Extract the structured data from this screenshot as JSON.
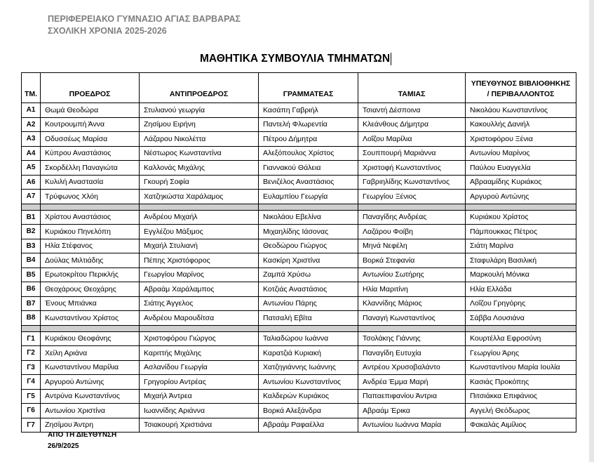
{
  "header": {
    "school_name": "ΠΕΡΙΦΕΡΕΙΑΚΟ ΓΥΜΝΑΣΙΟ ΑΓΙΑΣ ΒΑΡΒΑΡΑΣ",
    "school_year": "ΣΧΟΛΙΚΗ ΧΡΟΝΙΑ 2025-2026",
    "title": "ΜΑΘΗΤΙΚΑ ΣΥΜΒΟΥΛΙΑ ΤΜΗΜΑΤΩΝ"
  },
  "table": {
    "columns": [
      "ΤΜ.",
      "ΠΡΟΕΔΡΟΣ",
      "ΑΝΤΙΠΡΟΕΔΡΟΣ",
      "ΓΡΑΜΜΑΤΕΑΣ",
      "ΤΑΜΙΑΣ",
      "ΥΠΕΥΘΥΝΟΣ ΒΙΒΛΙΟΘΗΚΗΣ / ΠΕΡΙΒΑΛΛΟΝΤΟΣ"
    ],
    "groups": [
      [
        [
          "Α1",
          "Θωμά Θεοδώρα",
          "Στυλιανού γεωργία",
          "Κασάπη Γαβριήλ",
          "Τσιαντή Δέσποινα",
          "Νικολάου Κωνσταντίνος"
        ],
        [
          "Α2",
          "Κουτρουμπή Άννα",
          "Ζησίμου Ειρήνη",
          "Παντελή Φλωρεντία",
          "Κλεάνθους Δήμητρα",
          "Κακουλλής Δανιήλ"
        ],
        [
          "Α3",
          "Οδυσσέως Μαρίσα",
          "Λάζαρου Νικολέττα",
          "Πέτρου Δήμητρα",
          "Λοΐζου Μαρίλια",
          "Χριστοφόρου Ξένια"
        ],
        [
          "Α4",
          "Κύπρου Αναστάσιος",
          "Νέστωρος Κωνσταντίνα",
          "Αλεξόπουλος Χρίστος",
          "Σουππουρή Μαριάννα",
          "Αντωνίου Μαρίνος"
        ],
        [
          "Α5",
          "Σκορδέλλη Παναγιώτα",
          "Καλλονάς Μιχάλης",
          "Γιαννακού Θάλεια",
          "Χριστοφή Κωνσταντίνος",
          "Παύλου Ευαγγελία"
        ],
        [
          "Α6",
          "Κυλιλή Αναστασία",
          "Γκουρή Σοφία",
          "Βενιζέλος Αναστάσιος",
          "Γαβριηλίδης Κωνσταντίνος",
          "Αβρααμίδης Κυριάκος"
        ],
        [
          "Α7",
          "Τρύφωνος Χλόη",
          "Χατζηκώστα Χαράλαμος",
          "Ευλαμπίου Γεωργία",
          "Γεωργίου Ξένιος",
          "Αργυρού Αντώνης"
        ]
      ],
      [
        [
          "Β1",
          "Χρίστου Αναστάσιος",
          "Ανδρέου Μιχαήλ",
          "Νικολάου Εβελίνα",
          "Παναγίδης Ανδρέας",
          "Κυριάκου Χρίστος"
        ],
        [
          "Β2",
          "Κυριάκου Πηνελόπη",
          "Εγγλέζου Μάξιμος",
          "Μιχαηλίδης Ιάσονας",
          "Λαζάρου Φοίβη",
          "Πάμπουκκας Πέτρος"
        ],
        [
          "Β3",
          "Ηλία Στέφανος",
          "Μιχαήλ Στυλιανή",
          "Θεοδώρου Γιώργος",
          "Μηνά Νεφέλη",
          "Σιάτη Μαρίνα"
        ],
        [
          "Β4",
          "Δούλας Μιλτιάδης",
          "Πέπης Χριστόφορος",
          "Κασκίρη Χριστίνα",
          "Βορκά Στεφανία",
          "Σταφυλάρη Βασιλική"
        ],
        [
          "Β5",
          "Ερωτοκρίτου Περικλής",
          "Γεωργίου Μαρίνος",
          "Ζαμπά Χρύσω",
          "Αντωνίου Σωτήρης",
          "Μαρκουλή Μόνικα"
        ],
        [
          "Β6",
          "Θεοχάρους Θεοχάρης",
          "Αβραάμ Χαράλαμπος",
          "Κοτζιάς Αναστάσιος",
          "Ηλία Μαριτίνη",
          "Ηλία Ελλάδα"
        ],
        [
          "Β7",
          "Ένους Μπιάνκα",
          "Σιάτης Άγγελος",
          "Αντωνίου Πάρης",
          "Κλαννίδης Μάριος",
          "Λοΐζου Γρηγόρης"
        ],
        [
          "Β8",
          "Κωνσταντίνου Χρίστος",
          "Ανδρέου Μαρουδίτσα",
          "Πατσαλή Εβίτα",
          "Παναγή Κωνσταντίνος",
          "Σάββα Λουσιάνα"
        ]
      ],
      [
        [
          "Γ1",
          "Κυριάκου Θεοφάνης",
          "Χριστοφόρου Γιώργος",
          "Ταλιαδώρου Ιωάννα",
          "Τσολάκης Γιάννης",
          "Κουρτέλλα Εφροσύνη"
        ],
        [
          "Γ2",
          "Χείλη Αριάνα",
          "Καριττής Μιχάλης",
          "Καρατζιά Κυριακή",
          "Παναγίδη Ευτυχία",
          "Γεωργίου Άρης"
        ],
        [
          "Γ3",
          "Κωνσταντίνου Μαρίλια",
          "Ασλανίδου Γεωργία",
          "Χατζηγιάννης Ιωάννης",
          "Αντρέου Χρυσοβαλάντο",
          "Κωνσταντίνου Μαρία Ιουλία"
        ],
        [
          "Γ4",
          "Αργυρού Αντώνης",
          "Γρηγορίου Αντρέας",
          "Αντωνίου Κωνσταντίνος",
          "Ανδρέα Έμμα Μαρή",
          "Κασιάς Προκόπης"
        ],
        [
          "Γ5",
          "Αντρύνα Κωνσταντίνος",
          "Μιχαήλ Άντρεα",
          "Καλδερών Κυριάκος",
          "Παπαεπιφανίου Άντρια",
          "Πιτσιάκκα Επιφάνιος"
        ],
        [
          "Γ6",
          "Αντωνίου Χριστίνα",
          "Ιωαννίδης Αριάννα",
          "Βορκά Αλεξάνδρα",
          "Αβραάμ Έρικα",
          "Αγγελή Θεόδωρος"
        ],
        [
          "Γ7",
          "Ζησίμου Άντρη",
          "Τσιακουρή Χριστιάνα",
          "Αβραάμ Ραφαέλλα",
          "Αντωνίου Ιωάννα Μαρία",
          "Φακαλάς Αιμίλιος"
        ]
      ]
    ]
  },
  "footer": {
    "signature": "ΑΠΟ ΤΗ ΔΙΕΥΘΥΝΣΗ",
    "date": "26/9/2025"
  },
  "colors": {
    "header_text": "#7f7f7f",
    "separator_row": "#d0cece"
  }
}
